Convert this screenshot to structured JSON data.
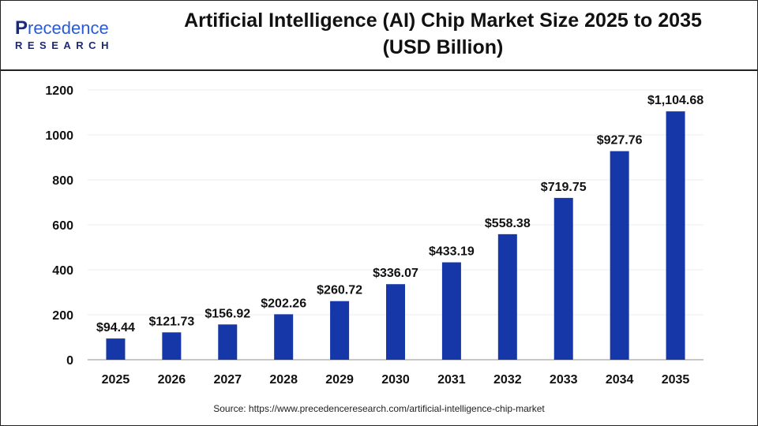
{
  "logo": {
    "line1": "Precedence",
    "line2": "RESEARCH"
  },
  "title_line1": "Artificial Intelligence (AI) Chip Market Size 2025 to 2035",
  "title_line2": "(USD Billion)",
  "source": "Source: https://www.precedenceresearch.com/artificial-intelligence-chip-market",
  "chart_data": {
    "type": "bar",
    "categories": [
      "2025",
      "2026",
      "2027",
      "2028",
      "2029",
      "2030",
      "2031",
      "2032",
      "2033",
      "2034",
      "2035"
    ],
    "values": [
      94.44,
      121.73,
      156.92,
      202.26,
      260.72,
      336.07,
      433.19,
      558.38,
      719.75,
      927.76,
      1104.68
    ],
    "data_labels": [
      "$94.44",
      "$121.73",
      "$156.92",
      "$202.26",
      "$260.72",
      "$336.07",
      "$433.19",
      "$558.38",
      "$719.75",
      "$927.76",
      "$1,104.68"
    ],
    "ylim": [
      0,
      1200
    ],
    "yticks": [
      0,
      200,
      400,
      600,
      800,
      1000,
      1200
    ],
    "grid": true,
    "bar_color": "#1537a8",
    "xlabel": "",
    "ylabel": ""
  }
}
